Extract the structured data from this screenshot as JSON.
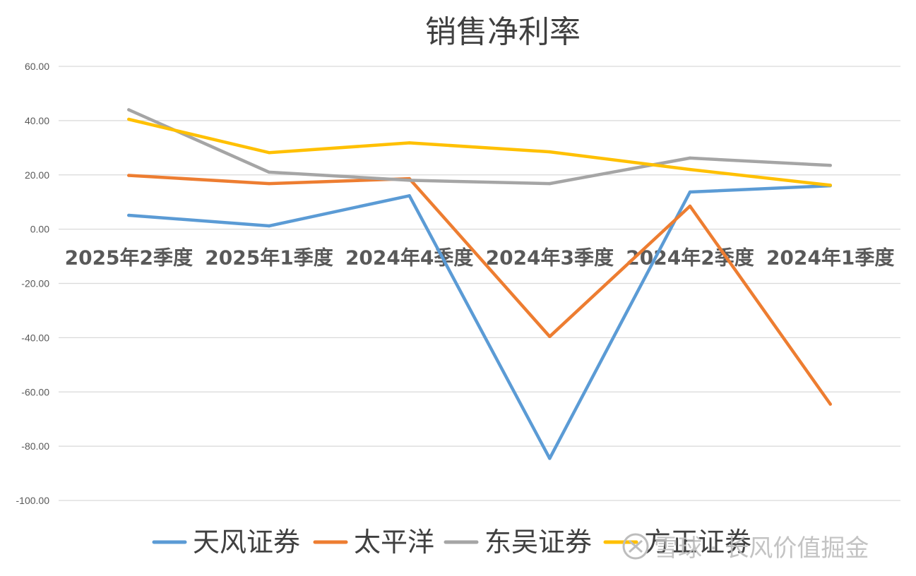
{
  "chart_data": {
    "type": "line",
    "title": "销售净利率",
    "categories": [
      "2025年2季度",
      "2025年1季度",
      "2024年4季度",
      "2024年3季度",
      "2024年2季度",
      "2024年1季度"
    ],
    "ylim": [
      -100,
      60
    ],
    "yticks": [
      60,
      40,
      20,
      0,
      -20,
      -40,
      -60,
      -80,
      -100
    ],
    "ytick_labels": [
      "60.00",
      "40.00",
      "20.00",
      "0.00",
      "-20.00",
      "-40.00",
      "-60.00",
      "-80.00",
      "-100.00"
    ],
    "grid": true,
    "legend_position": "bottom",
    "xlabel": "",
    "ylabel": "",
    "series": [
      {
        "name": "天风证券",
        "color": "#5b9bd5",
        "values": [
          5.1,
          1.2,
          12.3,
          -84.5,
          13.7,
          16.0
        ]
      },
      {
        "name": "太平洋",
        "color": "#ed7d31",
        "values": [
          19.8,
          16.8,
          18.6,
          -39.6,
          8.5,
          -64.5
        ]
      },
      {
        "name": "东吴证券",
        "color": "#a5a5a5",
        "values": [
          44.0,
          21.0,
          18.0,
          16.8,
          26.2,
          23.5
        ]
      },
      {
        "name": "方正证券",
        "color": "#ffc000",
        "values": [
          40.5,
          28.2,
          31.8,
          28.5,
          22.0,
          16.2
        ]
      }
    ]
  },
  "watermark": {
    "text": "雪球 · 长风价值掘金"
  }
}
